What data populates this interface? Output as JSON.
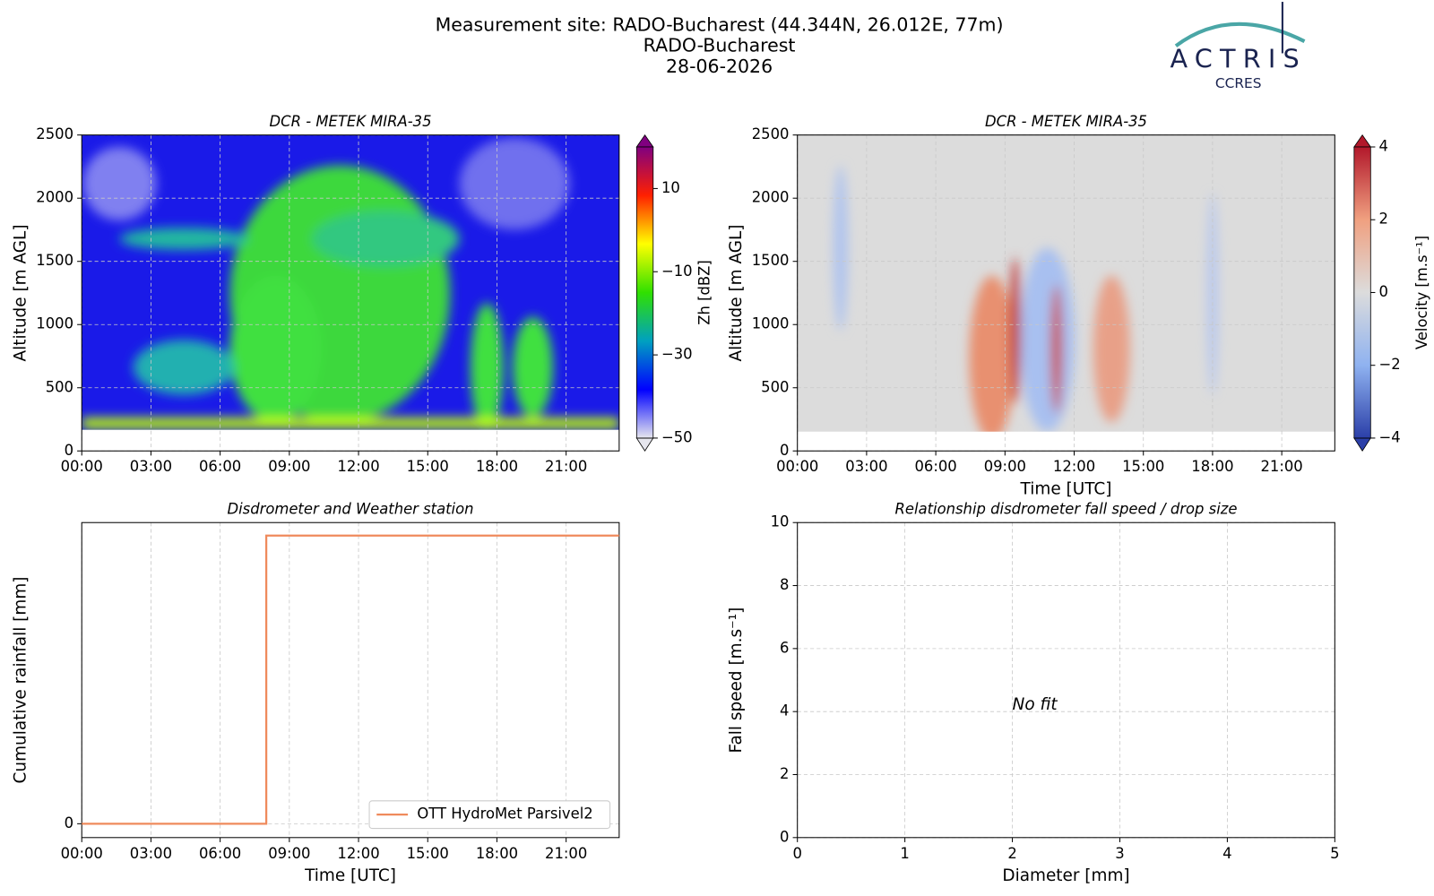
{
  "header": {
    "title": [
      "Measurement site: RADO-Bucharest (44.344N, 26.012E, 77m)",
      "RADO-Bucharest",
      "28-06-2026"
    ],
    "logo": "ACTRIS",
    "logo_sub": "CCRES"
  },
  "chart_data": [
    {
      "type": "heatmap",
      "title": "DCR - METEK MIRA-35",
      "ylabel": "Altitude [m AGL]",
      "xlim": [
        0,
        23.3
      ],
      "xticks": [
        {
          "value": 0,
          "label": "00:00"
        },
        {
          "value": 3,
          "label": "03:00"
        },
        {
          "value": 6,
          "label": "06:00"
        },
        {
          "value": 9,
          "label": "09:00"
        },
        {
          "value": 12,
          "label": "12:00"
        },
        {
          "value": 15,
          "label": "15:00"
        },
        {
          "value": 18,
          "label": "18:00"
        },
        {
          "value": 21,
          "label": "21:00"
        }
      ],
      "ylim": [
        0,
        2500
      ],
      "yticks": [
        0,
        500,
        1000,
        1500,
        2000,
        2500
      ],
      "grid": true,
      "colorbar": {
        "label": "Zh [dBZ]",
        "lim": [
          -50,
          20
        ],
        "ticks": [
          {
            "value": -50,
            "label": "−50"
          },
          {
            "value": -30,
            "label": "−30"
          },
          {
            "value": -10,
            "label": "−10"
          },
          10
        ],
        "colormap": [
          "#e6e6ee",
          "#0000ff",
          "#00a0c0",
          "#30e000",
          "#ffff00",
          "#ff2000",
          "#800080"
        ]
      }
    },
    {
      "type": "heatmap",
      "title": "DCR - METEK MIRA-35",
      "ylabel": "Altitude [m AGL]",
      "xlabel": "Time [UTC]",
      "xlim": [
        0,
        23.3
      ],
      "xticks": [
        {
          "value": 0,
          "label": "00:00"
        },
        {
          "value": 3,
          "label": "03:00"
        },
        {
          "value": 6,
          "label": "06:00"
        },
        {
          "value": 9,
          "label": "09:00"
        },
        {
          "value": 12,
          "label": "12:00"
        },
        {
          "value": 15,
          "label": "15:00"
        },
        {
          "value": 18,
          "label": "18:00"
        },
        {
          "value": 21,
          "label": "21:00"
        }
      ],
      "ylim": [
        0,
        2500
      ],
      "yticks": [
        0,
        500,
        1000,
        1500,
        2000,
        2500
      ],
      "grid": true,
      "colorbar": {
        "label": "Velocity [m.s⁻¹]",
        "lim": [
          -4,
          4
        ],
        "ticks": [
          {
            "value": -4,
            "label": "−4"
          },
          {
            "value": -2,
            "label": "−2"
          },
          0,
          2,
          4
        ],
        "colormap": [
          "#2b3fa8",
          "#8fb2f0",
          "#dcdcdc",
          "#f0a080",
          "#b2182b"
        ]
      }
    },
    {
      "type": "line",
      "title": "Disdrometer and Weather station",
      "ylabel": "Cumulative rainfall [mm]",
      "xlabel": "Time [UTC]",
      "xlim": [
        0,
        23.3
      ],
      "xticks": [
        {
          "value": 0,
          "label": "00:00"
        },
        {
          "value": 3,
          "label": "03:00"
        },
        {
          "value": 6,
          "label": "06:00"
        },
        {
          "value": 9,
          "label": "09:00"
        },
        {
          "value": 12,
          "label": "12:00"
        },
        {
          "value": 15,
          "label": "15:00"
        },
        {
          "value": 18,
          "label": "18:00"
        },
        {
          "value": 21,
          "label": "21:00"
        }
      ],
      "ylim": [
        -0.48,
        10.45
      ],
      "yticks": [
        0
      ],
      "grid": true,
      "legend": "lower right",
      "x": [
        0,
        8,
        8,
        23.3
      ],
      "series": [
        {
          "name": "OTT HydroMet Parsivel2",
          "color": "#ef8a5c",
          "values": [
            0,
            0,
            10,
            10
          ]
        }
      ]
    },
    {
      "type": "scatter",
      "title": "Relationship disdrometer fall speed / drop size",
      "xlabel": "Diameter [mm]",
      "ylabel": "Fall speed [m.s⁻¹]",
      "xlim": [
        0,
        5
      ],
      "xticks": [
        0,
        1,
        2,
        3,
        4,
        5
      ],
      "ylim": [
        0,
        10
      ],
      "yticks": [
        0,
        2,
        4,
        6,
        8,
        10
      ],
      "grid": true,
      "annotation": "No fit",
      "series": []
    }
  ]
}
